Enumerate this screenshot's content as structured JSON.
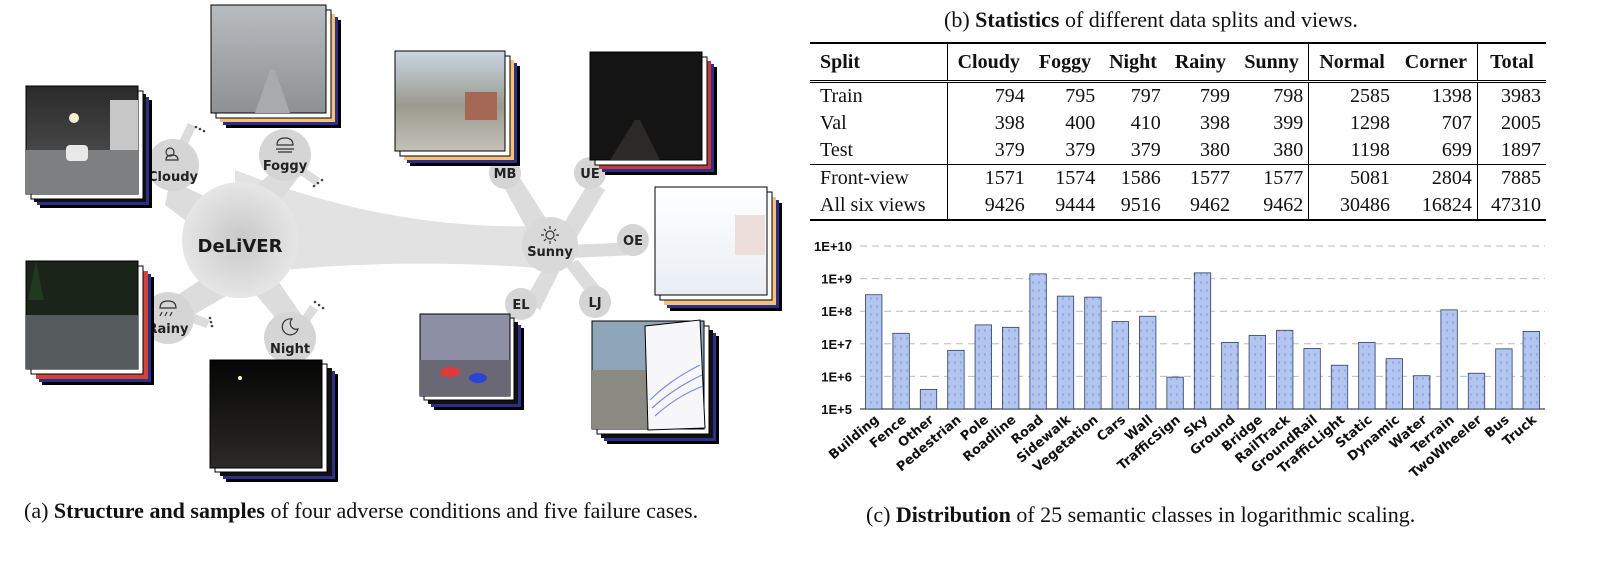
{
  "captions": {
    "a_bold": "Structure and samples",
    "a_prefix": "(a) ",
    "a_rest": " of four adverse conditions and five failure cases.",
    "b_prefix": "(b) ",
    "b_bold": "Statistics",
    "b_rest": " of different data splits and views.",
    "c_prefix": "(c) ",
    "c_bold": "Distribution",
    "c_rest": " of 25 semantic classes in logarithmic scaling."
  },
  "diagram": {
    "center": "DeLiVER",
    "conditions": [
      "Cloudy",
      "Foggy",
      "Rainy",
      "Night"
    ],
    "hub": "Sunny",
    "failure_cases": [
      "MB",
      "UE",
      "OE",
      "EL",
      "LJ"
    ],
    "icons": [
      "cloud-sun-icon",
      "fog-icon",
      "rain-icon",
      "moon-icon",
      "sun-icon"
    ]
  },
  "table": {
    "headers": [
      "Split",
      "Cloudy",
      "Foggy",
      "Night",
      "Rainy",
      "Sunny",
      "Normal",
      "Corner",
      "Total"
    ],
    "rows": [
      [
        "Train",
        "794",
        "795",
        "797",
        "799",
        "798",
        "2585",
        "1398",
        "3983"
      ],
      [
        "Val",
        "398",
        "400",
        "410",
        "398",
        "399",
        "1298",
        "707",
        "2005"
      ],
      [
        "Test",
        "379",
        "379",
        "379",
        "380",
        "380",
        "1198",
        "699",
        "1897"
      ],
      [
        "Front-view",
        "1571",
        "1574",
        "1586",
        "1577",
        "1577",
        "5081",
        "2804",
        "7885"
      ],
      [
        "All six views",
        "9426",
        "9444",
        "9516",
        "9462",
        "9462",
        "30486",
        "16824",
        "47310"
      ]
    ]
  },
  "chart_data": {
    "type": "bar",
    "scale": "log",
    "ylim": [
      100000,
      10000000000
    ],
    "yticks": [
      "1E+5",
      "1E+6",
      "1E+7",
      "1E+8",
      "1E+9",
      "1E+10"
    ],
    "grid": true,
    "bar_color": "#b3c6f2",
    "categories": [
      "Building",
      "Fence",
      "Other",
      "Pedestrian",
      "Pole",
      "Roadline",
      "Road",
      "Sidewalk",
      "Vegetation",
      "Cars",
      "Wall",
      "TrafficSign",
      "Sky",
      "Ground",
      "Bridge",
      "RailTrack",
      "GroundRail",
      "TrafficLight",
      "Static",
      "Dynamic",
      "Water",
      "Terrain",
      "TwoWheeler",
      "Bus",
      "Truck"
    ],
    "values": [
      320000000,
      21000000,
      400000,
      6300000,
      38000000,
      32000000,
      1400000000,
      290000000,
      270000000,
      48000000,
      70000000,
      950000,
      1500000000,
      11000000,
      18000000,
      26000000,
      7200000,
      2200000,
      11000000,
      3500000,
      1050000,
      110000000,
      1250000,
      7000000,
      24000000
    ]
  }
}
